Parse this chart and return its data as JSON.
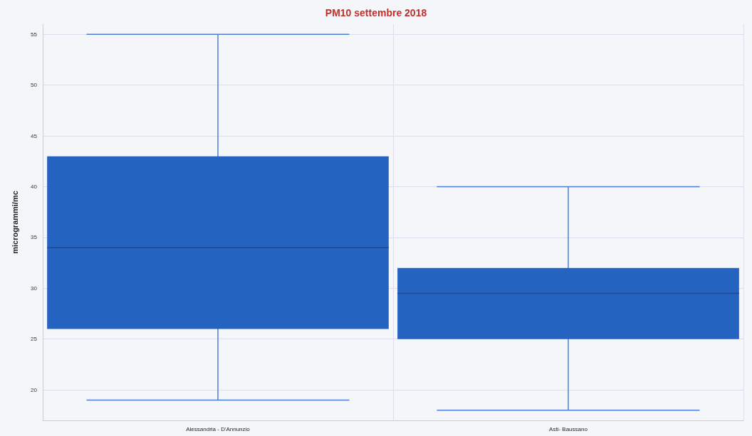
{
  "chart_data": {
    "type": "box",
    "title": "PM10 settembre 2018",
    "ylabel": "microgrammi/mc",
    "categories": [
      "Alessandria - D'Annunzio",
      "Asti- Baussano"
    ],
    "boxes": [
      {
        "low": 19,
        "q1": 26,
        "median": 34,
        "q3": 43,
        "high": 55
      },
      {
        "low": 18,
        "q1": 25,
        "median": 29.5,
        "q3": 32,
        "high": 40
      }
    ],
    "color": "#2563c0",
    "ylim": [
      17,
      56
    ],
    "yticks": [
      20,
      25,
      30,
      35,
      40,
      45,
      50,
      55
    ],
    "grid": true
  }
}
